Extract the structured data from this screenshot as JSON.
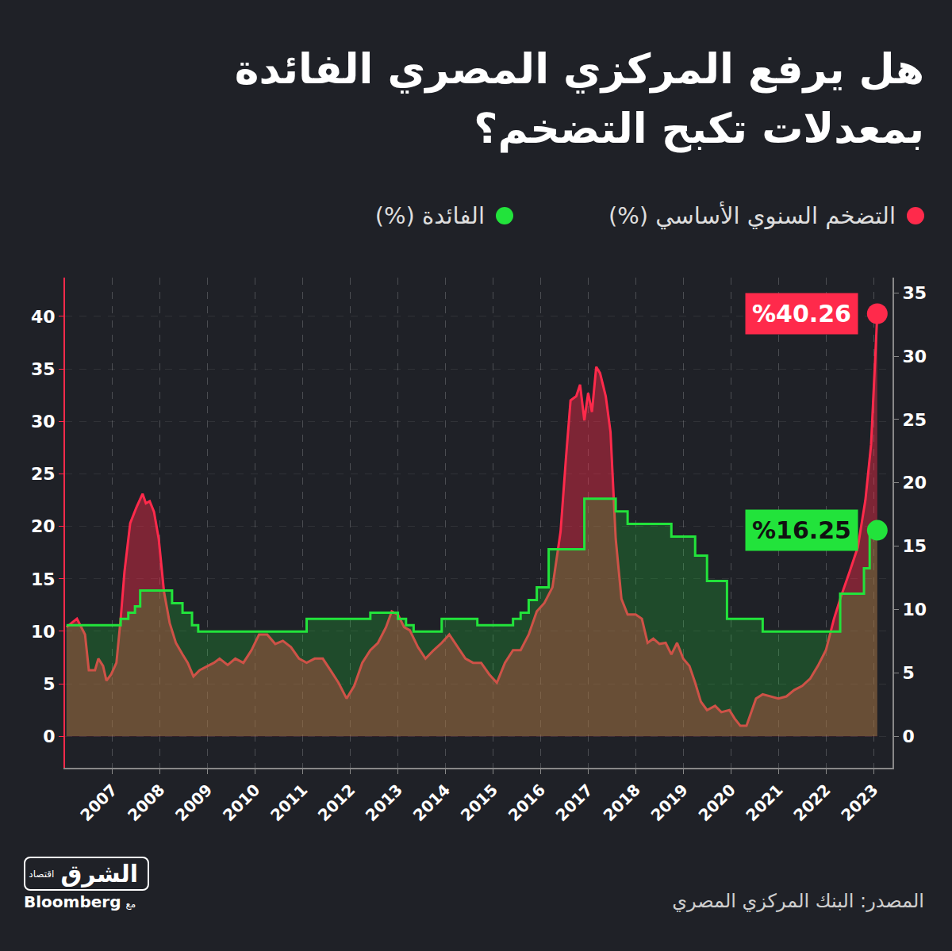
{
  "chart_data": {
    "type": "line",
    "title": "هل يرفع المركزي المصري الفائدة بمعدلات تكبح التضخم؟",
    "legend": "top",
    "grid": true,
    "xlim": [
      2006,
      2023.4
    ],
    "xticks": [
      2007,
      2008,
      2009,
      2010,
      2011,
      2012,
      2013,
      2014,
      2015,
      2016,
      2017,
      2018,
      2019,
      2020,
      2021,
      2022,
      2023
    ],
    "ylim": [
      -3,
      43.7
    ],
    "yticks": [
      0,
      5,
      10,
      15,
      20,
      25,
      30,
      35,
      40
    ],
    "y2lim": [
      -2.5,
      36.2
    ],
    "y2ticks": [
      0,
      5,
      10,
      15,
      20,
      25,
      30,
      35
    ],
    "series": [
      {
        "name": "التضخم السنوي الأساسي (%)",
        "color": "#ff2a4b",
        "axis": "y",
        "line_style": "solid",
        "x": [
          2006.03,
          2006.25,
          2006.42,
          2006.5,
          2006.63,
          2006.7,
          2006.8,
          2006.87,
          2006.97,
          2007.08,
          2007.17,
          2007.25,
          2007.37,
          2007.5,
          2007.63,
          2007.7,
          2007.78,
          2007.87,
          2007.97,
          2008.08,
          2008.2,
          2008.33,
          2008.47,
          2008.58,
          2008.7,
          2008.83,
          2009.0,
          2009.13,
          2009.25,
          2009.42,
          2009.58,
          2009.75,
          2009.92,
          2010.08,
          2010.25,
          2010.42,
          2010.58,
          2010.75,
          2010.92,
          2011.08,
          2011.25,
          2011.42,
          2011.58,
          2011.75,
          2011.92,
          2012.08,
          2012.25,
          2012.42,
          2012.58,
          2012.75,
          2012.87,
          2013.0,
          2013.13,
          2013.25,
          2013.42,
          2013.58,
          2013.75,
          2013.92,
          2014.08,
          2014.25,
          2014.42,
          2014.58,
          2014.75,
          2014.92,
          2015.08,
          2015.25,
          2015.42,
          2015.58,
          2015.75,
          2015.92,
          2016.08,
          2016.25,
          2016.42,
          2016.53,
          2016.63,
          2016.75,
          2016.83,
          2016.92,
          2017.0,
          2017.08,
          2017.17,
          2017.25,
          2017.37,
          2017.47,
          2017.58,
          2017.7,
          2017.83,
          2018.0,
          2018.13,
          2018.25,
          2018.37,
          2018.5,
          2018.63,
          2018.75,
          2018.87,
          2019.0,
          2019.13,
          2019.25,
          2019.37,
          2019.5,
          2019.67,
          2019.8,
          2019.97,
          2020.08,
          2020.2,
          2020.33,
          2020.42,
          2020.53,
          2020.67,
          2020.83,
          2021.0,
          2021.17,
          2021.33,
          2021.5,
          2021.67,
          2021.83,
          2022.0,
          2022.17,
          2022.33,
          2022.5,
          2022.67,
          2022.83,
          2022.95,
          2023.03,
          2023.08
        ],
        "values": [
          10.4,
          11.2,
          9.7,
          6.3,
          6.3,
          7.4,
          6.7,
          5.3,
          5.9,
          7.0,
          11.2,
          15.7,
          20.3,
          21.8,
          23.1,
          22.2,
          22.4,
          21.4,
          18.8,
          13.8,
          10.8,
          8.9,
          7.8,
          7.0,
          5.7,
          6.3,
          6.7,
          7.0,
          7.4,
          6.8,
          7.4,
          7.0,
          8.2,
          9.7,
          9.7,
          8.8,
          9.1,
          8.5,
          7.4,
          7.0,
          7.4,
          7.4,
          6.3,
          5.1,
          3.6,
          4.8,
          7.0,
          8.2,
          8.9,
          10.4,
          11.9,
          11.6,
          10.4,
          10.1,
          8.5,
          7.4,
          8.2,
          8.9,
          9.7,
          8.5,
          7.4,
          7.0,
          7.0,
          5.9,
          5.1,
          7.0,
          8.2,
          8.2,
          9.7,
          11.9,
          12.7,
          14.2,
          19.5,
          26.3,
          32.0,
          32.4,
          33.5,
          30.1,
          32.7,
          30.9,
          35.2,
          34.6,
          32.4,
          29.0,
          18.8,
          13.1,
          11.6,
          11.6,
          11.2,
          8.9,
          9.3,
          8.8,
          8.9,
          7.8,
          8.9,
          7.4,
          6.7,
          5.1,
          3.3,
          2.5,
          2.9,
          2.3,
          2.5,
          1.7,
          1.0,
          1.0,
          2.1,
          3.6,
          4.0,
          3.8,
          3.6,
          3.8,
          4.4,
          4.8,
          5.5,
          6.7,
          8.2,
          11.2,
          13.5,
          15.7,
          18.0,
          22.5,
          27.8,
          35.4,
          40.26
        ]
      },
      {
        "name": "الفائدة (%)",
        "color": "#22e33b",
        "axis": "y2",
        "line_style": "step",
        "x": [
          2006.03,
          2007.0,
          2007.17,
          2007.33,
          2007.47,
          2007.58,
          2008.08,
          2008.25,
          2008.47,
          2008.67,
          2008.8,
          2011.08,
          2012.42,
          2013.0,
          2013.17,
          2013.33,
          2013.92,
          2014.67,
          2015.42,
          2015.58,
          2015.75,
          2015.92,
          2016.17,
          2016.92,
          2017.58,
          2017.83,
          2018.75,
          2019.25,
          2019.5,
          2019.92,
          2020.67,
          2022.3,
          2022.8,
          2022.92,
          2023.08
        ],
        "values": [
          8.75,
          8.75,
          9.25,
          9.75,
          10.25,
          11.5,
          11.5,
          10.5,
          9.75,
          8.75,
          8.25,
          9.25,
          9.75,
          9.25,
          8.75,
          8.25,
          9.25,
          8.75,
          9.25,
          9.75,
          10.75,
          11.75,
          14.75,
          18.75,
          17.75,
          16.75,
          15.75,
          14.25,
          12.25,
          9.25,
          8.25,
          11.25,
          13.25,
          16.25,
          16.25
        ]
      }
    ],
    "annotations": [
      {
        "text": "%40.26",
        "series": 0
      },
      {
        "text": "%16.25",
        "series": 1
      }
    ],
    "source": "المصدر: البنك المركزي المصري",
    "logo": {
      "name": "الشرق",
      "sub": "اقتصاد",
      "with": "مع",
      "partner": "Bloomberg"
    }
  }
}
